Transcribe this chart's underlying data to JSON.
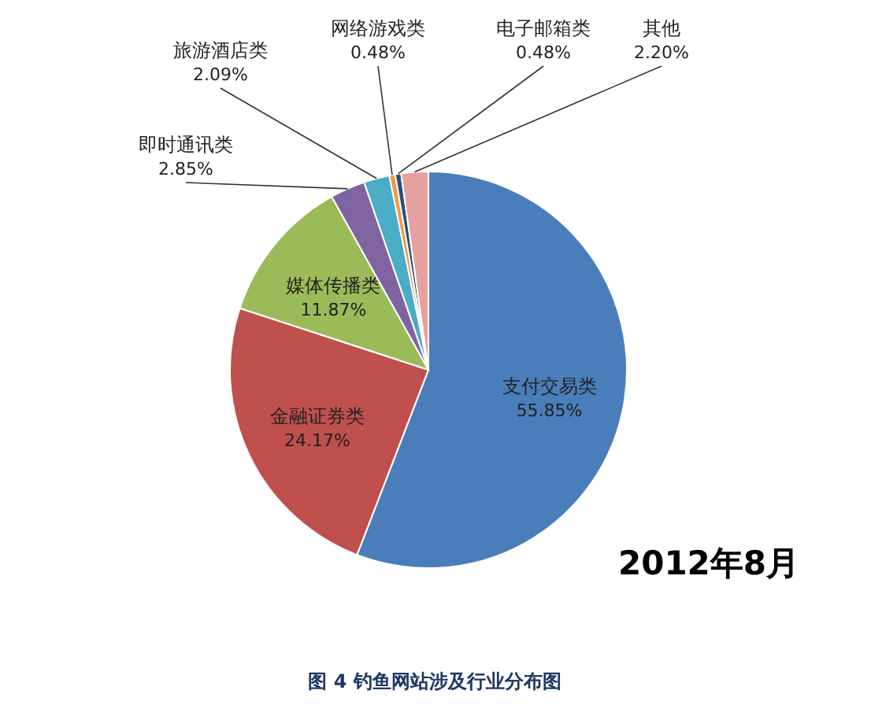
{
  "chart_data": {
    "type": "pie",
    "categories": [
      "支付交易类",
      "金融证券类",
      "媒体传播类",
      "即时通讯类",
      "旅游酒店类",
      "网络游戏类",
      "电子邮箱类",
      "其他"
    ],
    "values": [
      55.85,
      24.17,
      11.87,
      2.85,
      2.09,
      0.48,
      0.48,
      2.2
    ],
    "colors": [
      "#4a7ebb",
      "#c0504d",
      "#9bbb59",
      "#8064a2",
      "#4bacc6",
      "#f79646",
      "#2c4d75",
      "#e6a0a0"
    ],
    "value_labels": [
      "55.85%",
      "24.17%",
      "11.87%",
      "2.85%",
      "2.09%",
      "0.48%",
      "0.48%",
      "2.20%"
    ],
    "annotations": [
      "2012年8月",
      "图 4 钓鱼网站涉及行业分布图"
    ]
  }
}
